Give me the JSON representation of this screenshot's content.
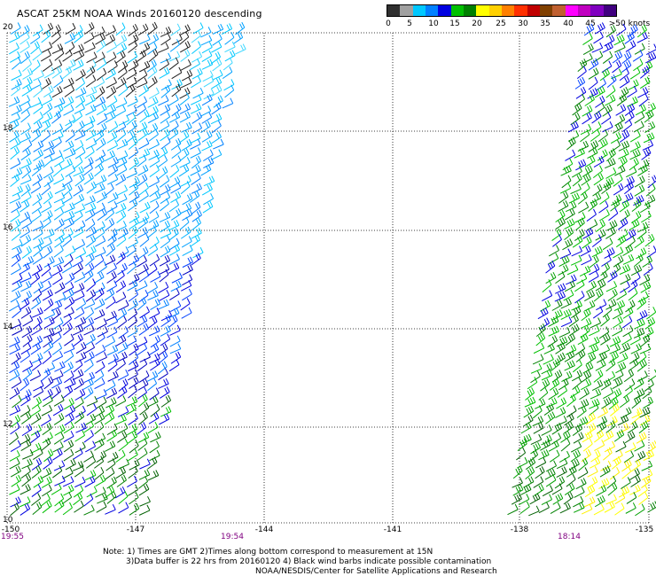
{
  "title": "ASCAT 25KM NOAA Winds 20160120 descending",
  "colorbar": {
    "colors": [
      "#303030",
      "#a0a0a0",
      "#00c8ff",
      "#0080ff",
      "#0000e0",
      "#00c000",
      "#008000",
      "#ffff00",
      "#ffd000",
      "#ff8000",
      "#ff3000",
      "#c00000",
      "#804000",
      "#c06030",
      "#ff00ff",
      "#c000c0",
      "#8000c0",
      "#400080"
    ],
    "labels": [
      "0",
      "5",
      "10",
      "15",
      "20",
      "25",
      "30",
      "35",
      "40",
      "45",
      ">50 knots"
    ]
  },
  "lat_labels": [
    "20",
    "18",
    "16",
    "14",
    "12",
    "10"
  ],
  "lon_labels": [
    "-150",
    "-147",
    "-144",
    "-141",
    "-138",
    "-135"
  ],
  "time_labels": [
    "19:55",
    "19:54",
    "18:14"
  ],
  "notes": [
    "Note: 1) Times are GMT 2)Times along bottom correspond to measurement at 15N",
    "3)Data buffer is 22 hrs from 20160120 4) Black wind barbs indicate possible contamination",
    "NOAA/NESDIS/Center for Satellite Applications and Research"
  ],
  "legend_icons": {
    "barb_marker": "wind-barb-icon"
  }
}
